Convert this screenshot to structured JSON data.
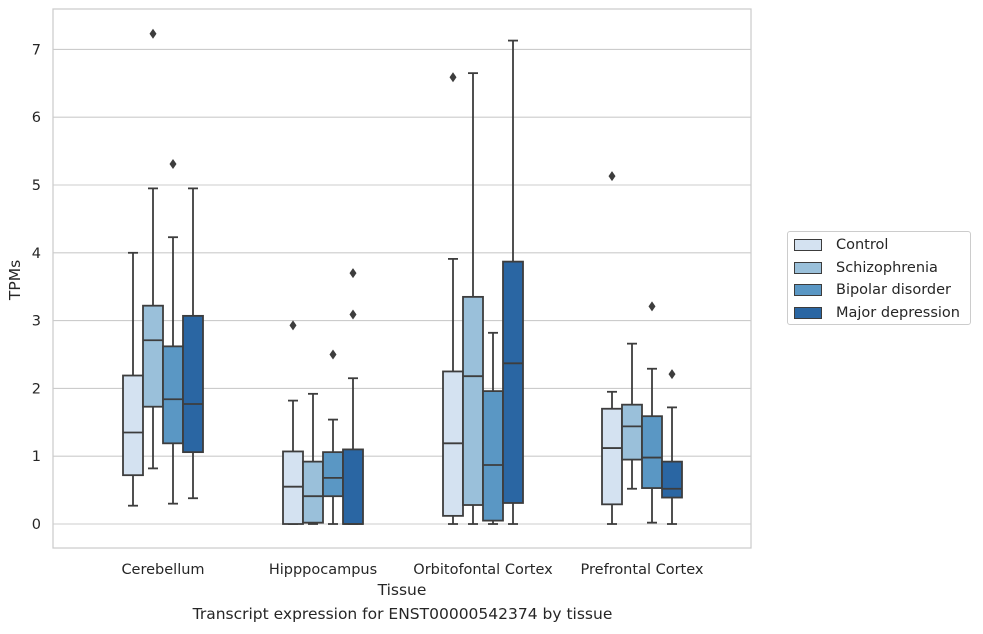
{
  "caption": "Transcript expression for ENST00000542374 by tissue",
  "chart_data": {
    "type": "box",
    "xlabel": "Tissue",
    "ylabel": "TPMs",
    "ylim": [
      -0.35,
      7.6
    ],
    "yticks": [
      0,
      1,
      2,
      3,
      4,
      5,
      6,
      7
    ],
    "grid": "horizontal",
    "legend_position": "right",
    "categories": [
      "Cerebellum",
      "Hipppocampus",
      "Orbitofontal Cortex",
      "Prefrontal Cortex"
    ],
    "series": [
      {
        "name": "Control",
        "color": "#d4e2f1",
        "boxes": [
          {
            "whislo": 0.27,
            "q1": 0.72,
            "med": 1.35,
            "q3": 2.19,
            "whishi": 4.0,
            "fliers": []
          },
          {
            "whislo": 0.0,
            "q1": 0.0,
            "med": 0.55,
            "q3": 1.07,
            "whishi": 1.82,
            "fliers": [
              2.93
            ]
          },
          {
            "whislo": 0.0,
            "q1": 0.12,
            "med": 1.19,
            "q3": 2.25,
            "whishi": 3.91,
            "fliers": [
              6.59
            ]
          },
          {
            "whislo": 0.0,
            "q1": 0.29,
            "med": 1.12,
            "q3": 1.7,
            "whishi": 1.95,
            "fliers": [
              5.13
            ]
          }
        ]
      },
      {
        "name": "Schizophrenia",
        "color": "#9ac0da",
        "boxes": [
          {
            "whislo": 0.82,
            "q1": 1.73,
            "med": 2.71,
            "q3": 3.22,
            "whishi": 4.95,
            "fliers": [
              7.23
            ]
          },
          {
            "whislo": 0.0,
            "q1": 0.02,
            "med": 0.41,
            "q3": 0.92,
            "whishi": 1.92,
            "fliers": []
          },
          {
            "whislo": 0.0,
            "q1": 0.28,
            "med": 2.18,
            "q3": 3.35,
            "whishi": 6.65,
            "fliers": []
          },
          {
            "whislo": 0.52,
            "q1": 0.95,
            "med": 1.44,
            "q3": 1.76,
            "whishi": 2.66,
            "fliers": []
          }
        ]
      },
      {
        "name": "Bipolar disorder",
        "color": "#5a97c4",
        "boxes": [
          {
            "whislo": 0.3,
            "q1": 1.19,
            "med": 1.84,
            "q3": 2.62,
            "whishi": 4.23,
            "fliers": [
              5.31
            ]
          },
          {
            "whislo": 0.0,
            "q1": 0.41,
            "med": 0.68,
            "q3": 1.06,
            "whishi": 1.54,
            "fliers": [
              2.5
            ]
          },
          {
            "whislo": 0.0,
            "q1": 0.05,
            "med": 0.87,
            "q3": 1.96,
            "whishi": 2.82,
            "fliers": []
          },
          {
            "whislo": 0.02,
            "q1": 0.53,
            "med": 0.98,
            "q3": 1.59,
            "whishi": 2.29,
            "fliers": [
              3.21
            ]
          }
        ]
      },
      {
        "name": "Major depression",
        "color": "#2a66a3",
        "boxes": [
          {
            "whislo": 0.38,
            "q1": 1.06,
            "med": 1.77,
            "q3": 3.07,
            "whishi": 4.95,
            "fliers": []
          },
          {
            "whislo": 0.0,
            "q1": 0.0,
            "med": 0.0,
            "q3": 1.1,
            "whishi": 2.15,
            "fliers": [
              3.09,
              3.7
            ]
          },
          {
            "whislo": 0.0,
            "q1": 0.31,
            "med": 2.37,
            "q3": 3.87,
            "whishi": 7.13,
            "fliers": []
          },
          {
            "whislo": 0.0,
            "q1": 0.39,
            "med": 0.52,
            "q3": 0.92,
            "whishi": 1.72,
            "fliers": [
              2.21
            ]
          }
        ]
      }
    ]
  }
}
